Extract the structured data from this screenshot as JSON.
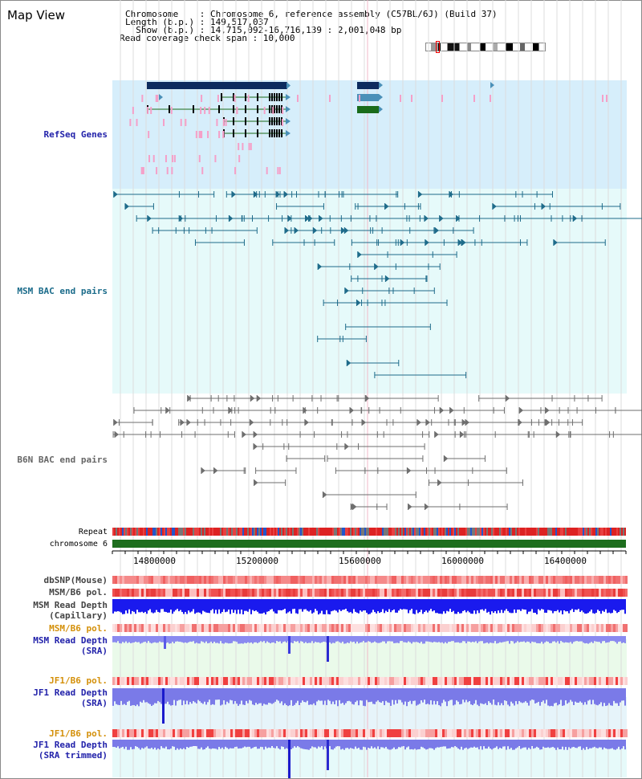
{
  "view": {
    "title": "Map View",
    "chromosome_label": "Chromosome    : Chromosome 6, reference assembly (C57BL/6J) (Build 37)",
    "length_label": "Length (b.p.) : 149,517,037",
    "show_label": "  Show (b.p.) : 14,715,092-16,716,139 : 2,001,048 bp",
    "coverage_label": "Read coverage check span : 10,000"
  },
  "tracks": {
    "refseq": "RefSeq Genes",
    "msm_bac": "MSM BAC end pairs",
    "b6n_bac": "B6N BAC end pairs",
    "repeat": "Repeat",
    "chromosome": "chromosome 6",
    "dbsnp": "dbSNP(Mouse)",
    "msm_pol1": "MSM/B6 pol.",
    "msm_depth_cap": "MSM Read Depth\n(Capillary)",
    "msm_pol2": "MSM/B6 pol.",
    "msm_depth_sra": "MSM Read Depth\n(SRA)",
    "jf1_pol1": "JF1/B6 pol.",
    "jf1_depth_sra": "JF1 Read Depth\n(SRA)",
    "jf1_pol2": "JF1/B6 pol.",
    "jf1_depth_trim": "JF1 Read Depth\n(SRA trimmed)"
  },
  "axis": {
    "ticks": [
      "14800000",
      "15200000",
      "15600000",
      "16000000",
      "16400000"
    ]
  },
  "colors": {
    "refseq_bg": "#d6eefb",
    "bac_bg": "#e6fafa",
    "gene_dark": "#0d2b5e",
    "gene_mid": "#4a90b8",
    "gene_green": "#1a6b1a",
    "msm_line": "#1e6b8a",
    "b6n_line": "#6e6e6e",
    "label_blue": "#2222aa",
    "label_teal": "#1a6b8a",
    "label_orange": "#d4900a",
    "chromosome_green": "#1e6e1e"
  }
}
